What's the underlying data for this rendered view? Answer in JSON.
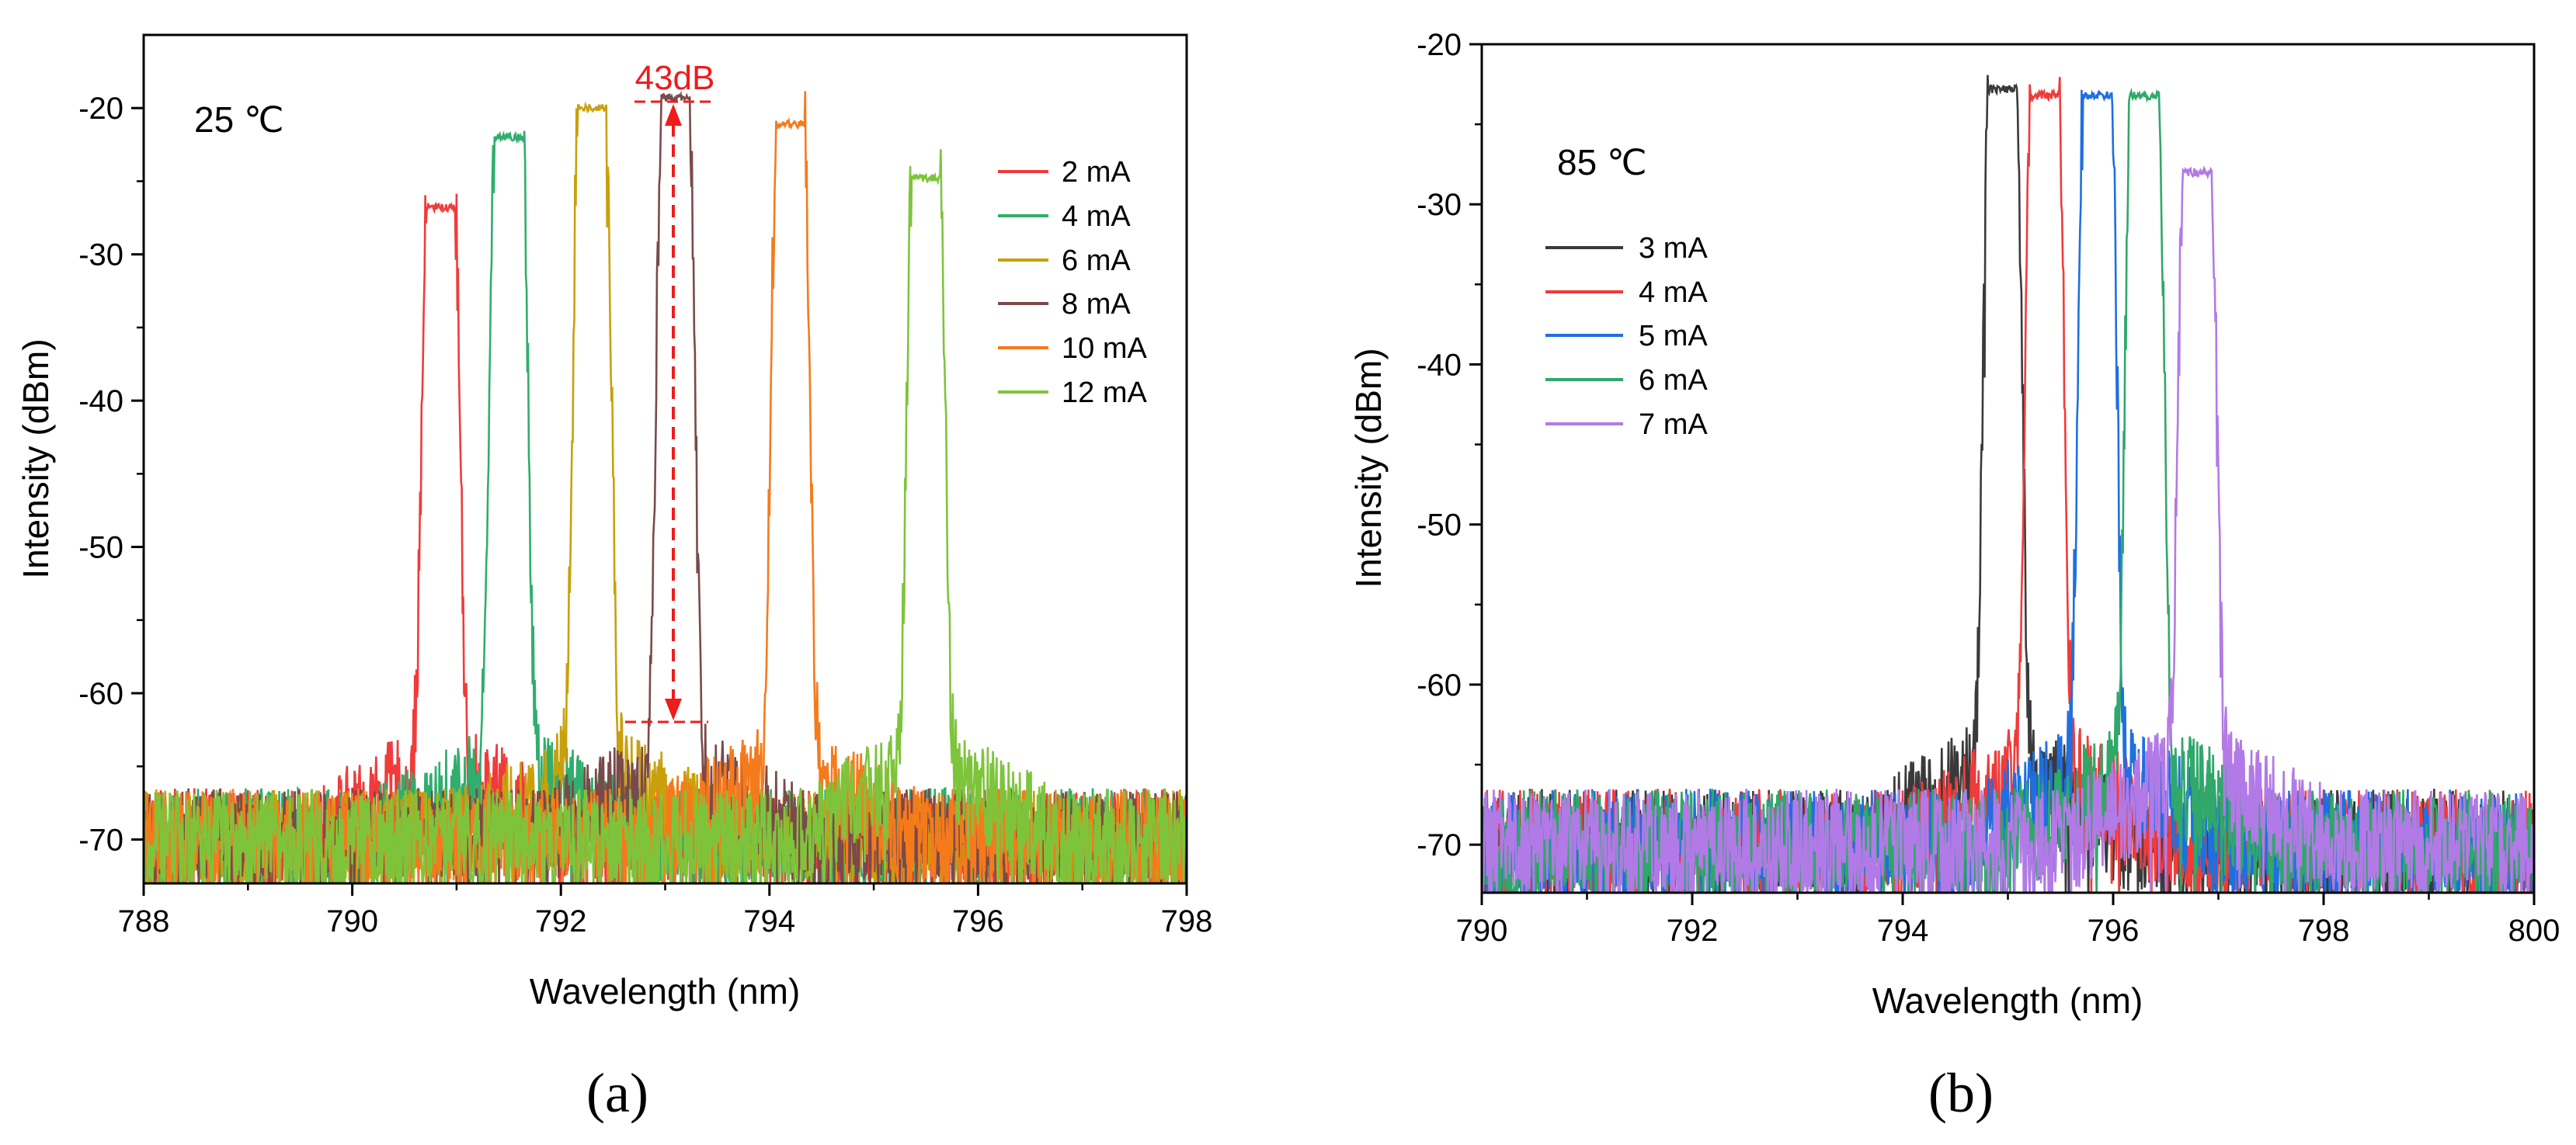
{
  "chart_data": [
    {
      "type": "line",
      "panel_label": "(a)",
      "temperature_label": "25 ℃",
      "xlabel": "Wavelength (nm)",
      "ylabel": "Intensity (dBm)",
      "xlim": [
        788,
        798
      ],
      "ylim": [
        -73,
        -15
      ],
      "xticks": [
        788,
        790,
        792,
        794,
        796,
        798
      ],
      "yticks": [
        -70,
        -60,
        -50,
        -40,
        -30,
        -20
      ],
      "noise_floor": -70,
      "annotation": {
        "text": "43dB",
        "x": 793.1,
        "y_top": -19.3,
        "y_bottom": -62
      },
      "series": [
        {
          "name": "2 mA",
          "color": "#f03b3b",
          "peak_x": 790.85,
          "peak_y": -26.8
        },
        {
          "name": "4 mA",
          "color": "#2fae6d",
          "peak_x": 791.5,
          "peak_y": -22.0
        },
        {
          "name": "6 mA",
          "color": "#c9a00c",
          "peak_x": 792.3,
          "peak_y": -20.0
        },
        {
          "name": "8 mA",
          "color": "#7a4a4a",
          "peak_x": 793.1,
          "peak_y": -19.3
        },
        {
          "name": "10 mA",
          "color": "#f57a1c",
          "peak_x": 794.2,
          "peak_y": -21.1
        },
        {
          "name": "12 mA",
          "color": "#7ec43b",
          "peak_x": 795.5,
          "peak_y": -24.8
        }
      ]
    },
    {
      "type": "line",
      "panel_label": "(b)",
      "temperature_label": "85 ℃",
      "xlabel": "Wavelength (nm)",
      "ylabel": "Intensity (dBm)",
      "xlim": [
        790,
        800
      ],
      "ylim": [
        -73,
        -20
      ],
      "xticks": [
        790,
        792,
        794,
        796,
        798,
        800
      ],
      "yticks": [
        -70,
        -60,
        -50,
        -40,
        -30,
        -20
      ],
      "noise_floor": -70,
      "series": [
        {
          "name": "3 mA",
          "color": "#3a3a3a",
          "peak_x": 794.95,
          "peak_y": -22.8
        },
        {
          "name": "4 mA",
          "color": "#f03b3b",
          "peak_x": 795.35,
          "peak_y": -23.2
        },
        {
          "name": "5 mA",
          "color": "#1f6fe0",
          "peak_x": 795.85,
          "peak_y": -23.2
        },
        {
          "name": "6 mA",
          "color": "#2fa86a",
          "peak_x": 796.3,
          "peak_y": -23.2
        },
        {
          "name": "7 mA",
          "color": "#b27ae6",
          "peak_x": 796.8,
          "peak_y": -28.0
        }
      ]
    }
  ]
}
